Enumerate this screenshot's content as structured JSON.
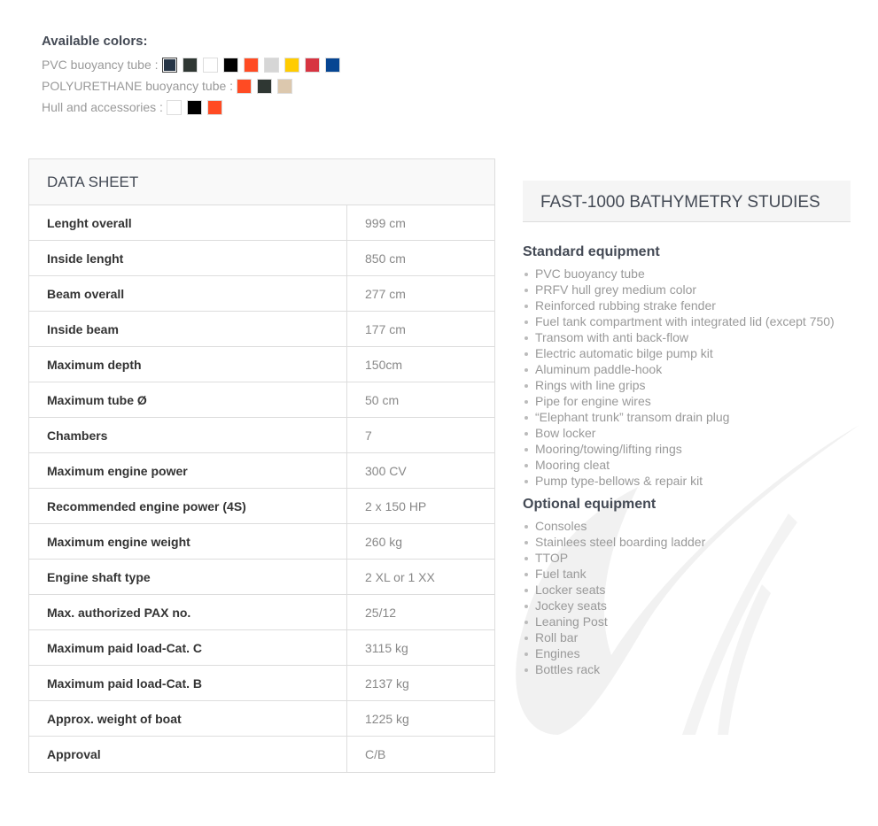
{
  "colors": {
    "title": "Available colors:",
    "groups": [
      {
        "label": "PVC buoyancy tube :",
        "swatches": [
          "#263546",
          "#2f3733",
          "#ffffff",
          "#000000",
          "#ff4b23",
          "#d6d6d6",
          "#ffcc00",
          "#d73441",
          "#064592"
        ],
        "selected": 0
      },
      {
        "label": "POLYURETHANE buoyancy tube :",
        "swatches": [
          "#ff4b23",
          "#2f3733",
          "#dcc8ae"
        ]
      },
      {
        "label": "Hull and accessories :",
        "swatches": [
          "#ffffff",
          "#000000",
          "#ff4b23"
        ]
      }
    ]
  },
  "datasheet": {
    "title": "DATA SHEET",
    "rows": [
      {
        "k": "Lenght overall",
        "v": "999 cm"
      },
      {
        "k": "Inside lenght",
        "v": "850 cm"
      },
      {
        "k": "Beam overall",
        "v": "277 cm"
      },
      {
        "k": "Inside beam",
        "v": "177 cm"
      },
      {
        "k": "Maximum depth",
        "v": "150cm"
      },
      {
        "k": "Maximum tube Ø",
        "v": "50 cm"
      },
      {
        "k": "Chambers",
        "v": "7"
      },
      {
        "k": "Maximum engine power",
        "v": "300 CV"
      },
      {
        "k": "Recommended engine power (4S)",
        "v": "2 x 150 HP"
      },
      {
        "k": "Maximum engine weight",
        "v": "260 kg"
      },
      {
        "k": "Engine shaft type",
        "v": "2 XL or 1 XX"
      },
      {
        "k": "Max. authorized PAX no.",
        "v": "25/12"
      },
      {
        "k": "Maximum paid load-Cat. C",
        "v": "3115 kg"
      },
      {
        "k": "Maximum paid load-Cat. B",
        "v": "2137 kg"
      },
      {
        "k": "Approx. weight of boat",
        "v": "1225 kg"
      },
      {
        "k": "Approval",
        "v": "C/B"
      }
    ]
  },
  "product": {
    "title": "FAST-1000 BATHYMETRY STUDIES",
    "standard_title": "Standard equipment",
    "standard": [
      "PVC buoyancy tube",
      "PRFV hull grey medium color",
      "Reinforced rubbing strake fender",
      "Fuel tank compartment with integrated lid (except 750)",
      "Transom with anti back-flow",
      "Electric automatic bilge pump kit",
      "Aluminum paddle-hook",
      "Rings with line grips",
      "Pipe for engine wires",
      "“Elephant trunk” transom drain plug",
      "Bow locker",
      "Mooring/towing/lifting rings",
      "Mooring cleat",
      "Pump type-bellows & repair kit"
    ],
    "optional_title": "Optional equipment",
    "optional": [
      "Consoles",
      "Stainlees steel boarding ladder",
      "TTOP",
      "Fuel tank",
      "Locker seats",
      "Jockey seats",
      "Leaning Post",
      "Roll bar",
      "Engines",
      "Bottles rack"
    ]
  }
}
